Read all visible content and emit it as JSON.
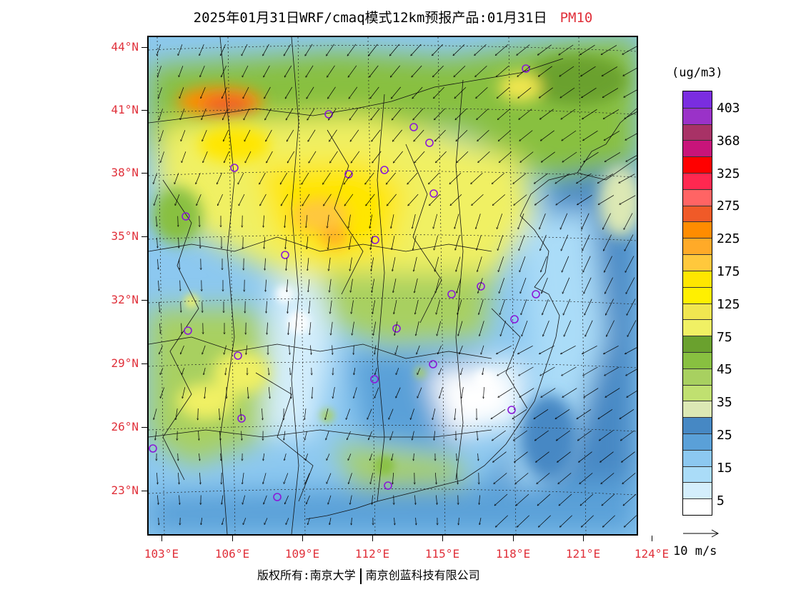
{
  "title": {
    "main": "2025年01月31日WRF/cmaq模式12km预报产品:01月31日",
    "species": "PM10"
  },
  "colors": {
    "label_red": "#e0303a"
  },
  "map": {
    "lat_labels": [
      "44°N",
      "41°N",
      "38°N",
      "35°N",
      "32°N",
      "29°N",
      "26°N",
      "23°N"
    ],
    "lon_labels": [
      "103°E",
      "106°E",
      "109°E",
      "112°E",
      "115°E",
      "118°E",
      "121°E",
      "124°E"
    ]
  },
  "colorbar": {
    "unit": "(ug/m3)",
    "colors": [
      "#7a2de0",
      "#9a32c8",
      "#a83266",
      "#c8147a",
      "#ff0000",
      "#ff2850",
      "#ff6464",
      "#f05a28",
      "#ff8c00",
      "#ffaa28",
      "#ffc83c",
      "#ffe600",
      "#fff000",
      "#f0e650",
      "#f0f064",
      "#6aa12e",
      "#88c040",
      "#a8d060",
      "#c0e070",
      "#dce8b4",
      "#4688c4",
      "#5aa0d8",
      "#8cc8f0",
      "#aadcf8",
      "#d4eefc",
      "#ffffff"
    ],
    "labels": [
      "403",
      "368",
      "325",
      "275",
      "225",
      "175",
      "125",
      "75",
      "45",
      "35",
      "25",
      "15",
      "5"
    ]
  },
  "wind_ref": {
    "label": "10 m/s"
  },
  "footer": {
    "left": "版权所有:南京大学",
    "right": "南京创蓝科技有限公司"
  }
}
